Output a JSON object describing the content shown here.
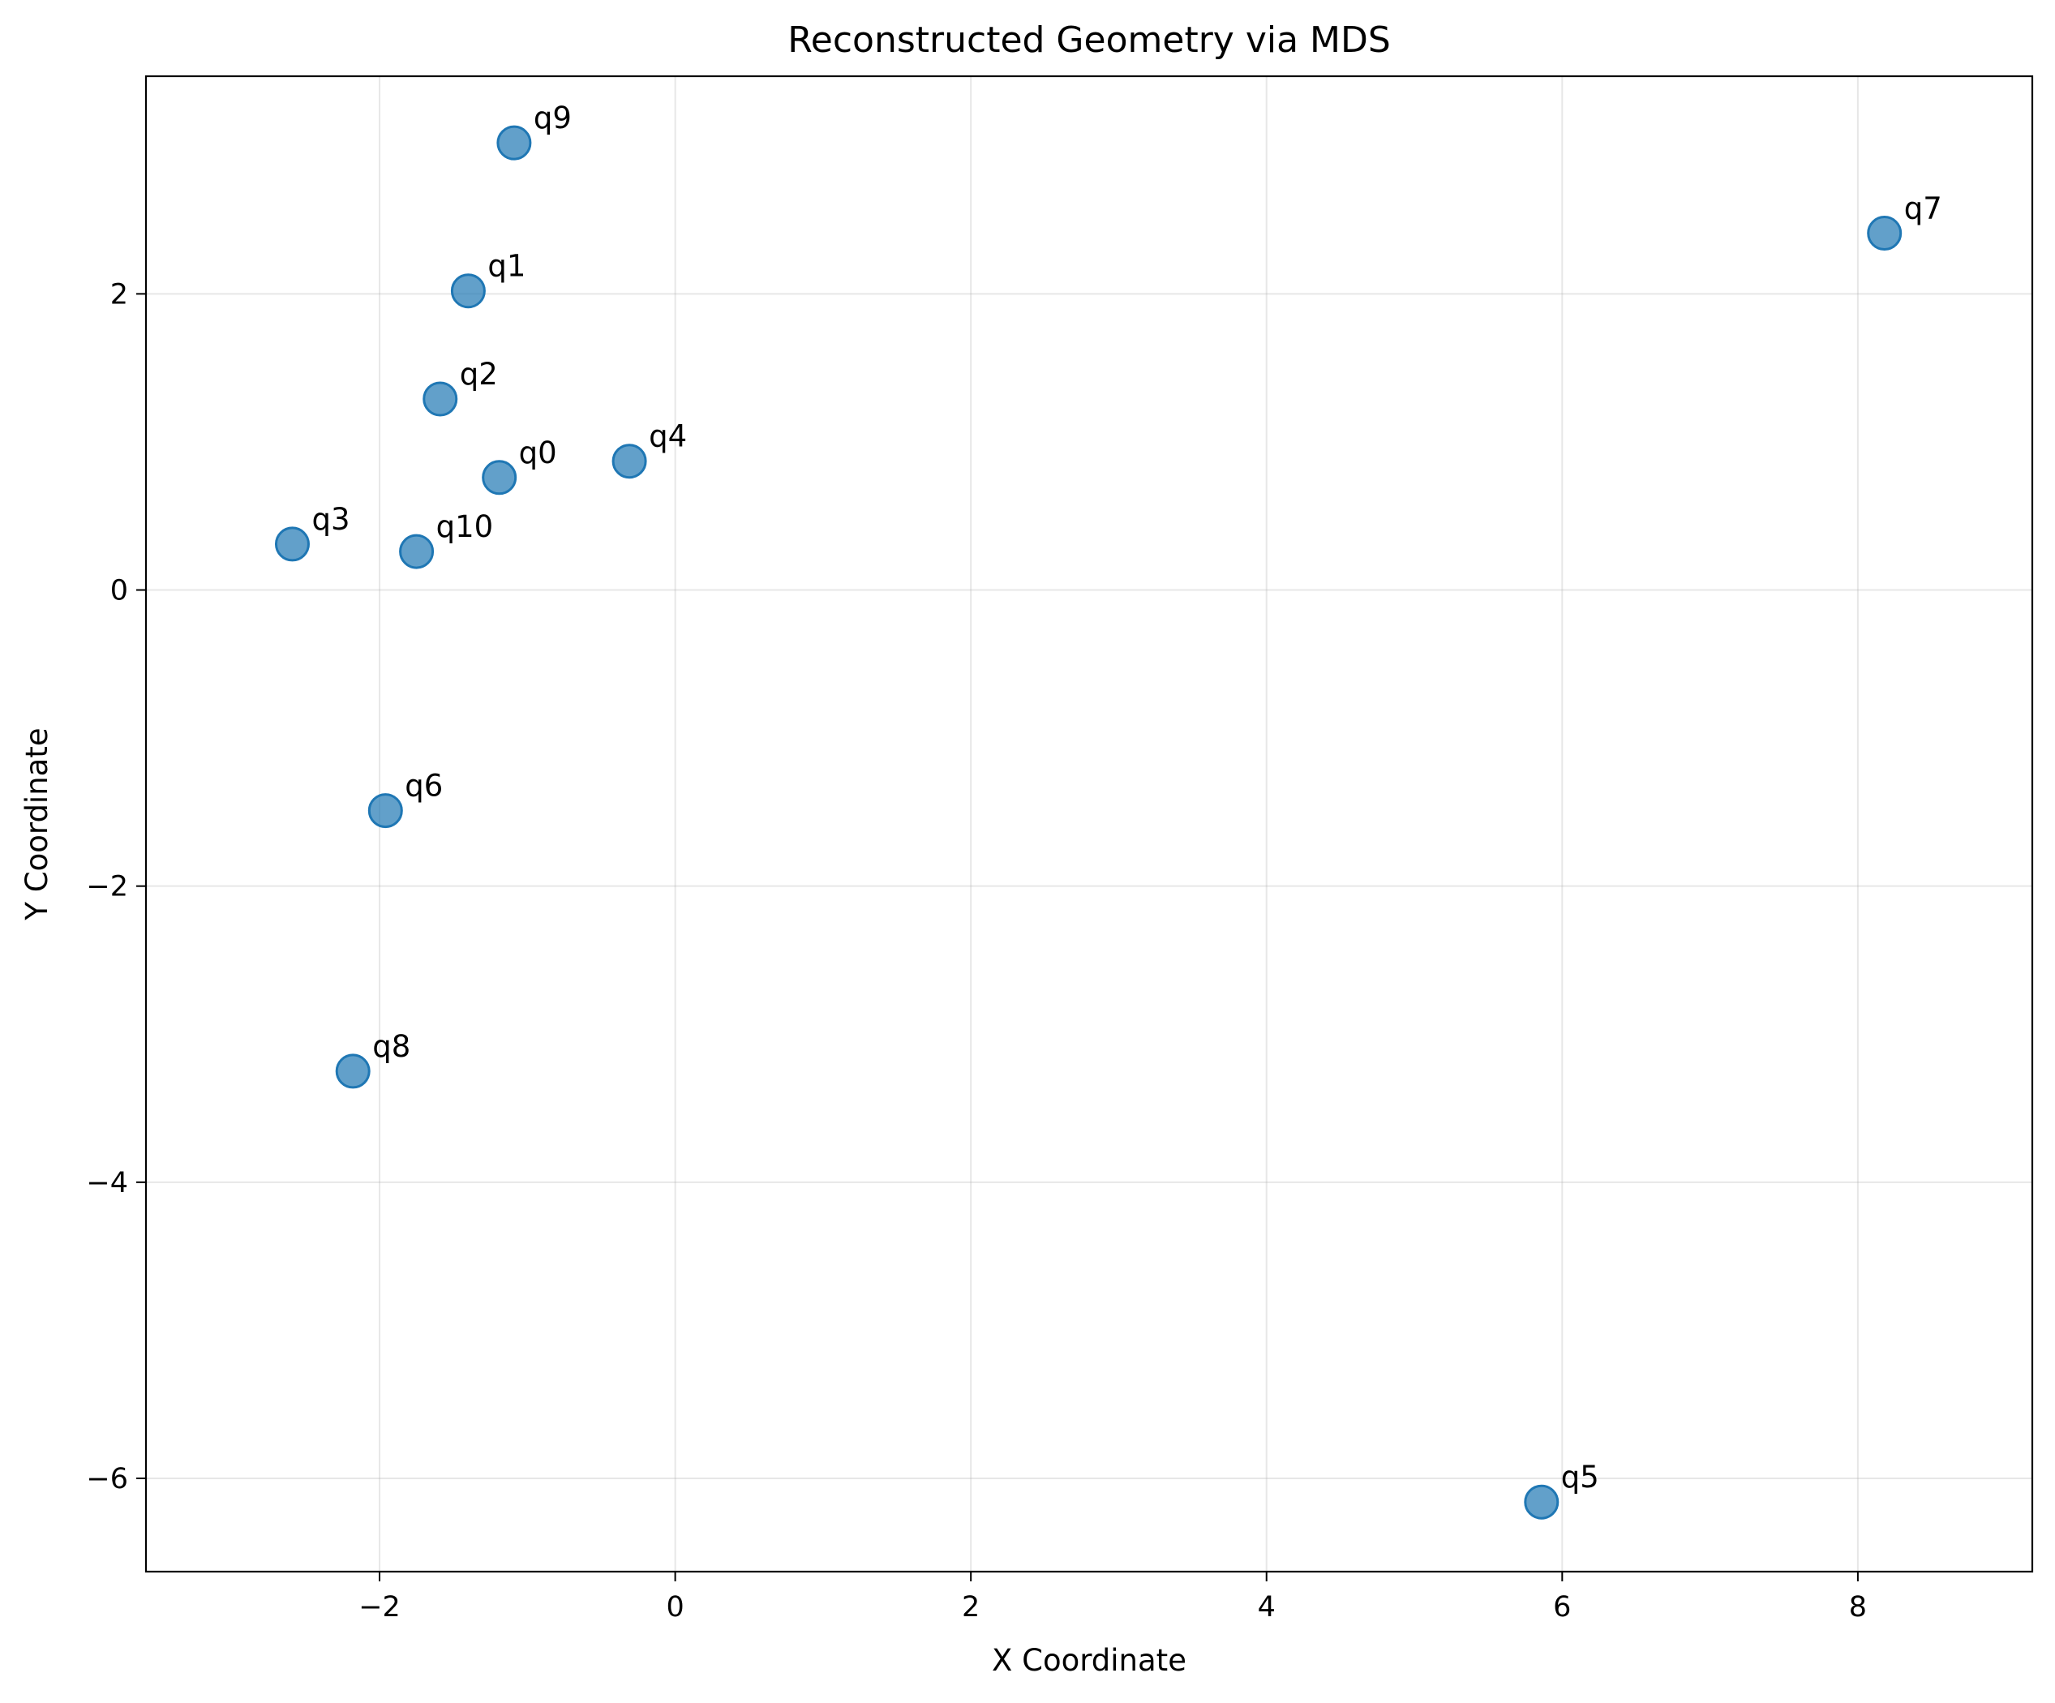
{
  "chart_data": {
    "type": "scatter",
    "title": "Reconstructed Geometry via MDS",
    "xlabel": "X Coordinate",
    "ylabel": "Y Coordinate",
    "xlim": [
      -3.58,
      9.18
    ],
    "ylim": [
      -6.63,
      3.47
    ],
    "xticks": [
      -2,
      0,
      2,
      4,
      6,
      8
    ],
    "yticks": [
      -6,
      -4,
      -2,
      0,
      2
    ],
    "grid": true,
    "marker_color": "#1f77b4",
    "marker_alpha": 0.7,
    "points": [
      {
        "label": "q0",
        "x": -1.19,
        "y": 0.76
      },
      {
        "label": "q1",
        "x": -1.4,
        "y": 2.02
      },
      {
        "label": "q2",
        "x": -1.59,
        "y": 1.29
      },
      {
        "label": "q3",
        "x": -2.59,
        "y": 0.31
      },
      {
        "label": "q4",
        "x": -0.31,
        "y": 0.87
      },
      {
        "label": "q5",
        "x": 5.86,
        "y": -6.16
      },
      {
        "label": "q6",
        "x": -1.96,
        "y": -1.49
      },
      {
        "label": "q7",
        "x": 8.18,
        "y": 2.41
      },
      {
        "label": "q8",
        "x": -2.18,
        "y": -3.25
      },
      {
        "label": "q9",
        "x": -1.09,
        "y": 3.02
      },
      {
        "label": "q10",
        "x": -1.75,
        "y": 0.26
      }
    ]
  }
}
